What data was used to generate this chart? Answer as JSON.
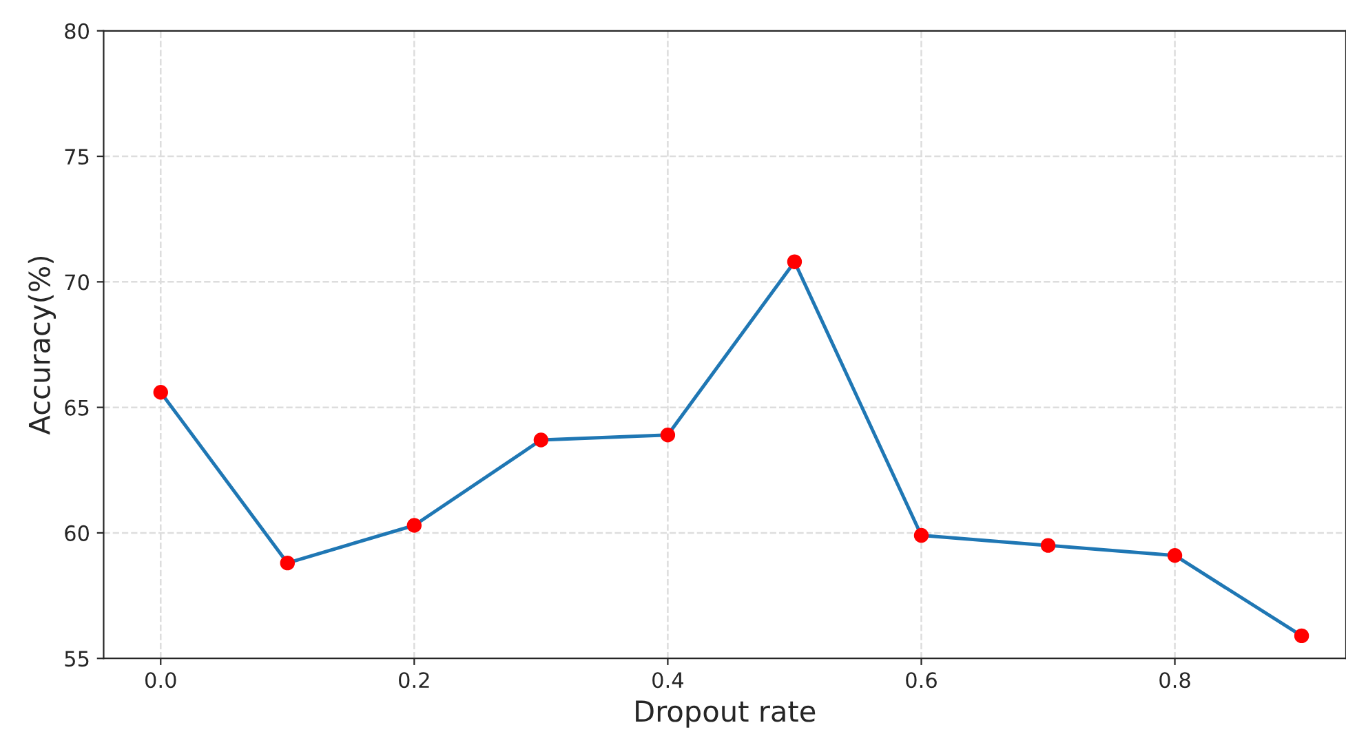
{
  "chart_data": {
    "type": "line",
    "xlabel": "Dropout rate",
    "ylabel": "Accuracy(%)",
    "x": [
      0.0,
      0.1,
      0.2,
      0.3,
      0.4,
      0.5,
      0.6,
      0.7,
      0.8,
      0.9
    ],
    "series": [
      {
        "color": "#1f77b4",
        "values": [
          65.6,
          58.8,
          60.3,
          63.7,
          63.9,
          70.8,
          59.9,
          59.5,
          59.1,
          55.9
        ]
      },
      {
        "type": "scatter",
        "color": "#ff0000",
        "marker": "circle",
        "values": [
          65.6,
          58.8,
          60.3,
          63.7,
          63.9,
          70.8,
          59.9,
          59.5,
          59.1,
          55.9
        ]
      }
    ],
    "xlim": [
      -0.045,
      0.935
    ],
    "ylim": [
      55,
      80
    ],
    "xticks": [
      {
        "value": 0.0,
        "label": "0.0"
      },
      {
        "value": 0.2,
        "label": "0.2"
      },
      {
        "value": 0.4,
        "label": "0.4"
      },
      {
        "value": 0.6,
        "label": "0.6"
      },
      {
        "value": 0.8,
        "label": "0.8"
      }
    ],
    "yticks": [
      55,
      60,
      65,
      70,
      75,
      80
    ],
    "grid": true
  }
}
